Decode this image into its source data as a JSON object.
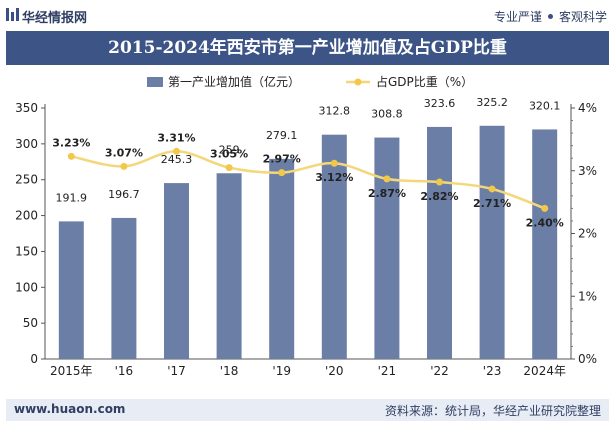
{
  "header": {
    "brand": "华经情报网",
    "slogan_left": "专业严谨",
    "slogan_right": "客观科学"
  },
  "footer": {
    "url": "www.huaon.com",
    "source": "资料来源：统计局，华经产业研究院整理"
  },
  "colors": {
    "title_bg": "#3c5486",
    "bar": "#6b7fa6",
    "line": "#f4d77a",
    "line_marker": "#f2c84b"
  },
  "chart_data": {
    "type": "bar",
    "title": "2015-2024年西安市第一产业增加值及占GDP比重",
    "categories": [
      "2015年",
      "'16",
      "'17",
      "'18",
      "'19",
      "'20",
      "'21",
      "'22",
      "'23",
      "2024年"
    ],
    "series": [
      {
        "name": "第一产业增加值（亿元）",
        "type": "bar",
        "axis": "left",
        "values": [
          191.9,
          196.7,
          245.3,
          259,
          279.1,
          312.8,
          308.8,
          323.6,
          325.2,
          320.1
        ],
        "labels": [
          "191.9",
          "196.7",
          "245.3",
          "259",
          "279.1",
          "312.8",
          "308.8",
          "323.6",
          "325.2",
          "320.1"
        ]
      },
      {
        "name": "占GDP比重（%）",
        "type": "line",
        "axis": "right",
        "values": [
          3.23,
          3.07,
          3.31,
          3.05,
          2.97,
          3.12,
          2.87,
          2.82,
          2.71,
          2.4
        ],
        "labels": [
          "3.23%",
          "3.07%",
          "3.31%",
          "3.05%",
          "2.97%",
          "3.12%",
          "2.87%",
          "2.82%",
          "2.71%",
          "2.40%"
        ]
      }
    ],
    "y_left": {
      "min": 0,
      "max": 350,
      "ticks": [
        "0",
        "50",
        "100",
        "150",
        "200",
        "250",
        "300",
        "350"
      ]
    },
    "y_right": {
      "min": 0,
      "max": 4,
      "ticks": [
        "0%",
        "1%",
        "2%",
        "3%",
        "4%"
      ]
    },
    "legend": "top-center",
    "grid": false
  }
}
